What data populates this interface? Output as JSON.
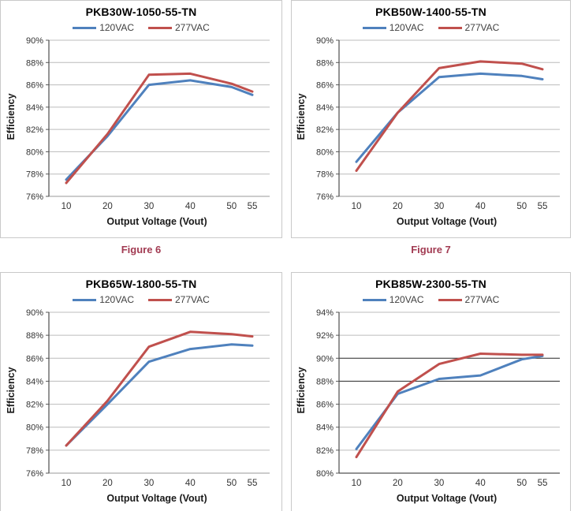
{
  "page": {
    "background": "#ffffff",
    "caption_color": "#a23b52"
  },
  "figure_captions": {
    "left": "Figure 6",
    "right": "Figure 7"
  },
  "chart_data": [
    {
      "type": "line",
      "title": "PKB30W-1050-55-TN",
      "xlabel": "Output Voltage (Vout)",
      "ylabel": "Efficiency",
      "x": [
        10,
        20,
        30,
        40,
        50,
        55
      ],
      "xlim": [
        10,
        55
      ],
      "ylim": [
        76,
        90
      ],
      "ytick_step": 2,
      "ytick_suffix": "%",
      "grid": true,
      "legend_position": "top",
      "dark_gridlines": [],
      "series": [
        {
          "name": "120VAC",
          "color": "#4F81BD",
          "values": [
            77.5,
            81.4,
            86.0,
            86.4,
            85.8,
            85.1
          ]
        },
        {
          "name": "277VAC",
          "color": "#C0504D",
          "values": [
            77.2,
            81.6,
            86.9,
            87.0,
            86.1,
            85.4
          ]
        }
      ],
      "caption": "Figure 6"
    },
    {
      "type": "line",
      "title": "PKB50W-1400-55-TN",
      "xlabel": "Output Voltage (Vout)",
      "ylabel": "Efficiency",
      "x": [
        10,
        20,
        30,
        40,
        50,
        55
      ],
      "xlim": [
        10,
        55
      ],
      "ylim": [
        76,
        90
      ],
      "ytick_step": 2,
      "ytick_suffix": "%",
      "grid": true,
      "legend_position": "top",
      "dark_gridlines": [],
      "series": [
        {
          "name": "120VAC",
          "color": "#4F81BD",
          "values": [
            79.1,
            83.5,
            86.7,
            87.0,
            86.8,
            86.5
          ]
        },
        {
          "name": "277VAC",
          "color": "#C0504D",
          "values": [
            78.3,
            83.5,
            87.5,
            88.1,
            87.9,
            87.4
          ]
        }
      ],
      "caption": "Figure 7"
    },
    {
      "type": "line",
      "title": "PKB65W-1800-55-TN",
      "xlabel": "Output Voltage (Vout)",
      "ylabel": "Efficiency",
      "x": [
        10,
        20,
        30,
        40,
        50,
        55
      ],
      "xlim": [
        10,
        55
      ],
      "ylim": [
        76,
        90
      ],
      "ytick_step": 2,
      "ytick_suffix": "%",
      "grid": true,
      "legend_position": "top",
      "dark_gridlines": [],
      "series": [
        {
          "name": "120VAC",
          "color": "#4F81BD",
          "values": [
            78.4,
            82.0,
            85.7,
            86.8,
            87.2,
            87.1
          ]
        },
        {
          "name": "277VAC",
          "color": "#C0504D",
          "values": [
            78.4,
            82.3,
            87.0,
            88.3,
            88.1,
            87.9
          ]
        }
      ]
    },
    {
      "type": "line",
      "title": "PKB85W-2300-55-TN",
      "xlabel": "Output Voltage (Vout)",
      "ylabel": "Efficiency",
      "x": [
        10,
        20,
        30,
        40,
        50,
        55
      ],
      "xlim": [
        10,
        55
      ],
      "ylim": [
        80,
        94
      ],
      "ytick_step": 2,
      "ytick_suffix": "%",
      "grid": true,
      "legend_position": "top",
      "dark_gridlines": [
        88,
        90
      ],
      "dark_baseline": true,
      "series": [
        {
          "name": "120VAC",
          "color": "#4F81BD",
          "values": [
            82.1,
            86.9,
            88.2,
            88.5,
            89.9,
            90.2
          ]
        },
        {
          "name": "277VAC",
          "color": "#C0504D",
          "values": [
            81.4,
            87.1,
            89.5,
            90.4,
            90.3,
            90.3
          ]
        }
      ]
    }
  ]
}
